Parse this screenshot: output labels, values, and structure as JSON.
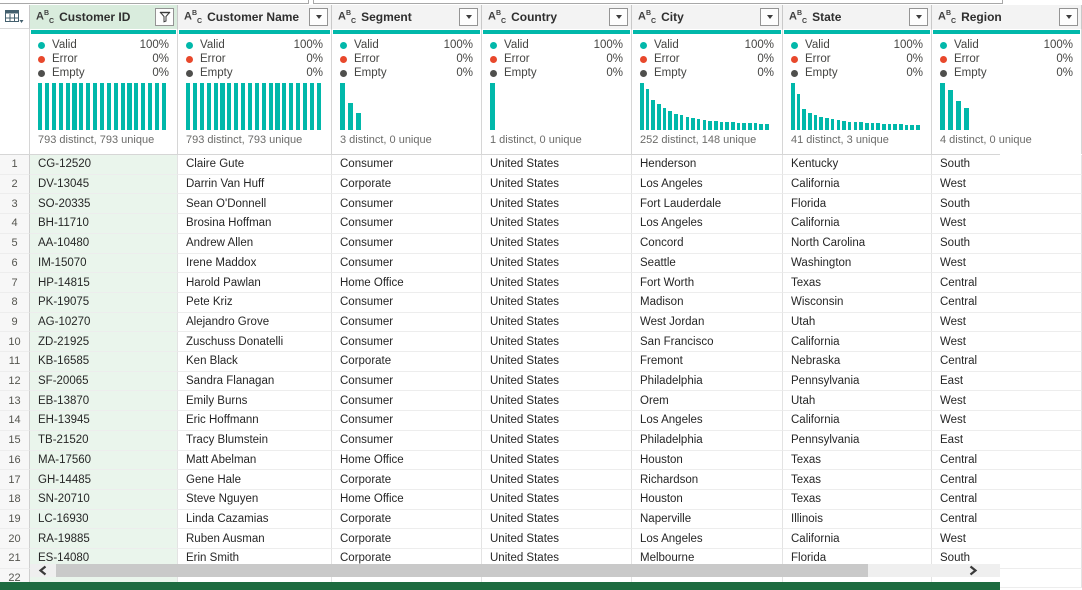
{
  "colors": {
    "accent_teal": "#01B8AA",
    "error_red": "#E8482C",
    "empty_gray": "#4F4F4D",
    "selected_header_green": "#D9ECDD",
    "selected_cell_green": "#EAF5EC",
    "header_gray": "#F3F3F3",
    "bottom_bar_green": "#1D6B40"
  },
  "table_menu": {
    "icon": "table-grid-with-caret"
  },
  "quality": {
    "labels": {
      "valid": "Valid",
      "error": "Error",
      "empty": "Empty"
    },
    "pcts": {
      "valid": "100%",
      "error": "0%",
      "empty": "0%"
    }
  },
  "columns": [
    {
      "label": "Customer ID",
      "type_icon": "ABC",
      "control": "filter",
      "selected": true,
      "width": 148,
      "distinct_text": "793 distinct, 793 unique",
      "histogram": [
        100,
        100,
        100,
        100,
        100,
        100,
        100,
        100,
        100,
        100,
        100,
        100,
        100,
        100,
        100,
        100,
        100,
        100,
        100
      ]
    },
    {
      "label": "Customer Name",
      "type_icon": "ABC",
      "control": "dropdown",
      "selected": false,
      "width": 154,
      "distinct_text": "793 distinct, 793 unique",
      "histogram": [
        100,
        100,
        100,
        100,
        100,
        100,
        100,
        100,
        100,
        100,
        100,
        100,
        100,
        100,
        100,
        100,
        100,
        100,
        100,
        100
      ]
    },
    {
      "label": "Segment",
      "type_icon": "ABC",
      "control": "dropdown",
      "selected": false,
      "width": 150,
      "distinct_text": "3 distinct, 0 unique",
      "histogram": [
        100,
        57,
        36
      ]
    },
    {
      "label": "Country",
      "type_icon": "ABC",
      "control": "dropdown",
      "selected": false,
      "width": 150,
      "distinct_text": "1 distinct, 0 unique",
      "histogram": [
        100
      ]
    },
    {
      "label": "City",
      "type_icon": "ABC",
      "control": "dropdown",
      "selected": false,
      "width": 151,
      "distinct_text": "252 distinct, 148 unique",
      "histogram": [
        100,
        88,
        64,
        55,
        47,
        41,
        35,
        31,
        28,
        25,
        23,
        21,
        20,
        19,
        18,
        17,
        16,
        15,
        15,
        14,
        14,
        13,
        13
      ]
    },
    {
      "label": "State",
      "type_icon": "ABC",
      "control": "dropdown",
      "selected": false,
      "width": 149,
      "distinct_text": "41 distinct, 3 unique",
      "histogram": [
        100,
        76,
        45,
        37,
        32,
        28,
        26,
        23,
        21,
        20,
        18,
        17,
        16,
        15,
        15,
        14,
        13,
        13,
        12,
        12,
        11,
        11,
        10
      ]
    },
    {
      "label": "Region",
      "type_icon": "ABC",
      "control": "dropdown",
      "selected": false,
      "width": 150,
      "distinct_text": "4 distinct, 0 unique",
      "histogram": [
        100,
        86,
        62,
        46
      ]
    }
  ],
  "rows": [
    {
      "n": "1",
      "cells": [
        "CG-12520",
        "Claire Gute",
        "Consumer",
        "United States",
        "Henderson",
        "Kentucky",
        "South"
      ]
    },
    {
      "n": "2",
      "cells": [
        "DV-13045",
        "Darrin Van Huff",
        "Corporate",
        "United States",
        "Los Angeles",
        "California",
        "West"
      ]
    },
    {
      "n": "3",
      "cells": [
        "SO-20335",
        "Sean O'Donnell",
        "Consumer",
        "United States",
        "Fort Lauderdale",
        "Florida",
        "South"
      ]
    },
    {
      "n": "4",
      "cells": [
        "BH-11710",
        "Brosina Hoffman",
        "Consumer",
        "United States",
        "Los Angeles",
        "California",
        "West"
      ]
    },
    {
      "n": "5",
      "cells": [
        "AA-10480",
        "Andrew Allen",
        "Consumer",
        "United States",
        "Concord",
        "North Carolina",
        "South"
      ]
    },
    {
      "n": "6",
      "cells": [
        "IM-15070",
        "Irene Maddox",
        "Consumer",
        "United States",
        "Seattle",
        "Washington",
        "West"
      ]
    },
    {
      "n": "7",
      "cells": [
        "HP-14815",
        "Harold Pawlan",
        "Home Office",
        "United States",
        "Fort Worth",
        "Texas",
        "Central"
      ]
    },
    {
      "n": "8",
      "cells": [
        "PK-19075",
        "Pete Kriz",
        "Consumer",
        "United States",
        "Madison",
        "Wisconsin",
        "Central"
      ]
    },
    {
      "n": "9",
      "cells": [
        "AG-10270",
        "Alejandro Grove",
        "Consumer",
        "United States",
        "West Jordan",
        "Utah",
        "West"
      ]
    },
    {
      "n": "10",
      "cells": [
        "ZD-21925",
        "Zuschuss Donatelli",
        "Consumer",
        "United States",
        "San Francisco",
        "California",
        "West"
      ]
    },
    {
      "n": "11",
      "cells": [
        "KB-16585",
        "Ken Black",
        "Corporate",
        "United States",
        "Fremont",
        "Nebraska",
        "Central"
      ]
    },
    {
      "n": "12",
      "cells": [
        "SF-20065",
        "Sandra Flanagan",
        "Consumer",
        "United States",
        "Philadelphia",
        "Pennsylvania",
        "East"
      ]
    },
    {
      "n": "13",
      "cells": [
        "EB-13870",
        "Emily Burns",
        "Consumer",
        "United States",
        "Orem",
        "Utah",
        "West"
      ]
    },
    {
      "n": "14",
      "cells": [
        "EH-13945",
        "Eric Hoffmann",
        "Consumer",
        "United States",
        "Los Angeles",
        "California",
        "West"
      ]
    },
    {
      "n": "15",
      "cells": [
        "TB-21520",
        "Tracy Blumstein",
        "Consumer",
        "United States",
        "Philadelphia",
        "Pennsylvania",
        "East"
      ]
    },
    {
      "n": "16",
      "cells": [
        "MA-17560",
        "Matt Abelman",
        "Home Office",
        "United States",
        "Houston",
        "Texas",
        "Central"
      ]
    },
    {
      "n": "17",
      "cells": [
        "GH-14485",
        "Gene Hale",
        "Corporate",
        "United States",
        "Richardson",
        "Texas",
        "Central"
      ]
    },
    {
      "n": "18",
      "cells": [
        "SN-20710",
        "Steve Nguyen",
        "Home Office",
        "United States",
        "Houston",
        "Texas",
        "Central"
      ]
    },
    {
      "n": "19",
      "cells": [
        "LC-16930",
        "Linda Cazamias",
        "Corporate",
        "United States",
        "Naperville",
        "Illinois",
        "Central"
      ]
    },
    {
      "n": "20",
      "cells": [
        "RA-19885",
        "Ruben Ausman",
        "Corporate",
        "United States",
        "Los Angeles",
        "California",
        "West"
      ]
    },
    {
      "n": "21",
      "cells": [
        "ES-14080",
        "Erin Smith",
        "Corporate",
        "United States",
        "Melbourne",
        "Florida",
        "South"
      ]
    },
    {
      "n": "22",
      "cells": [
        "",
        "",
        "",
        "",
        "",
        "",
        ""
      ]
    }
  ],
  "scrollbar": {
    "left_icon": "chevron-left",
    "right_icon": "chevron-right"
  }
}
